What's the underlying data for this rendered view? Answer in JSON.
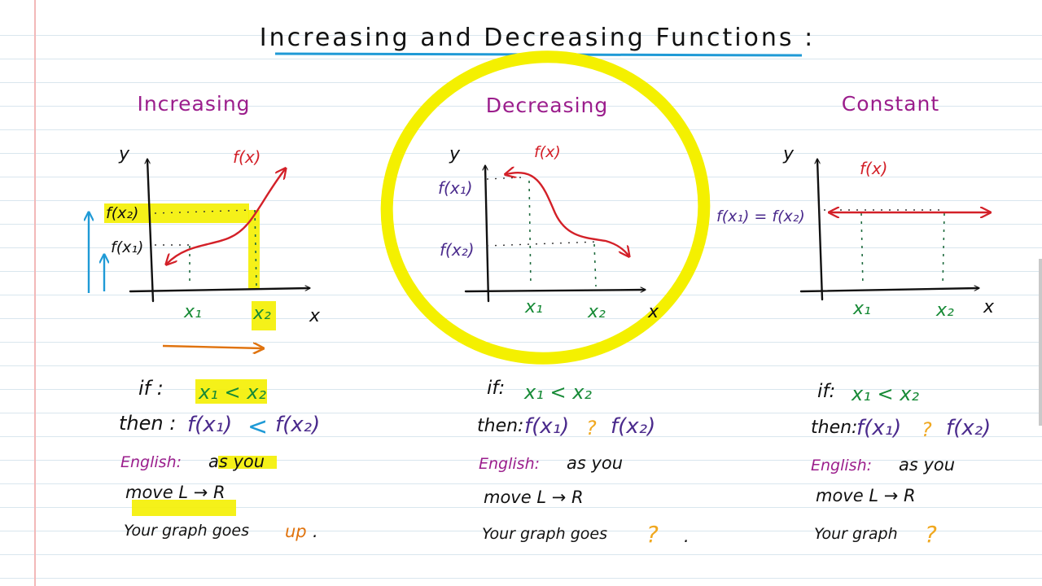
{
  "title": "Increasing and Decreasing Functions :",
  "colors": {
    "highlight": "#f4f000",
    "curve": "#d32028",
    "green_labels": "#178a36",
    "purple_labels": "#4a2a8c",
    "headings": "#9b1e8c",
    "title_underline": "#1f9ad6",
    "question_marks": "#f0a820",
    "arrows": "#1f9ad6",
    "lr_arrow": "#e0730e"
  },
  "panels": {
    "increasing": {
      "heading": "Increasing",
      "y_label": "y",
      "x_label": "x",
      "curve_label": "f(x)",
      "fx2_label": "f(x₂)",
      "fx1_label": "f(x₁)",
      "x1_label": "x₁",
      "x2_label": "x₂",
      "if_prefix": "if :",
      "if_expr": "x₁ < x₂",
      "then_prefix": "then :",
      "then_left": "f(x₁)",
      "then_op": "<",
      "then_right": "f(x₂)",
      "english_label": "English:",
      "english_text": "as you",
      "move_text": "move L → R",
      "graph_text": "Your graph goes",
      "graph_word": "up",
      "graph_end": "."
    },
    "decreasing": {
      "heading": "Decreasing",
      "y_label": "y",
      "x_label": "x",
      "curve_label": "f(x)",
      "fx1_label": "f(x₁)",
      "fx2_label": "f(x₂)",
      "x1_label": "x₁",
      "x2_label": "x₂",
      "if_prefix": "if:",
      "if_expr": "x₁ < x₂",
      "then_prefix": "then:",
      "then_left": "f(x₁)",
      "then_op": "?",
      "then_right": "f(x₂)",
      "english_label": "English:",
      "english_text": "as you",
      "move_text": "move L → R",
      "graph_text": "Your graph goes",
      "graph_word": "?",
      "graph_end": "."
    },
    "constant": {
      "heading": "Constant",
      "y_label": "y",
      "x_label": "x",
      "curve_label": "f(x)",
      "eq_label": "f(x₁) = f(x₂)",
      "x1_label": "x₁",
      "x2_label": "x₂",
      "if_prefix": "if:",
      "if_expr": "x₁ < x₂",
      "then_prefix": "then:",
      "then_left": "f(x₁)",
      "then_op": "?",
      "then_right": "f(x₂)",
      "english_label": "English:",
      "english_text": "as you",
      "move_text": "move L → R",
      "graph_text": "Your graph",
      "graph_word": "?"
    }
  }
}
